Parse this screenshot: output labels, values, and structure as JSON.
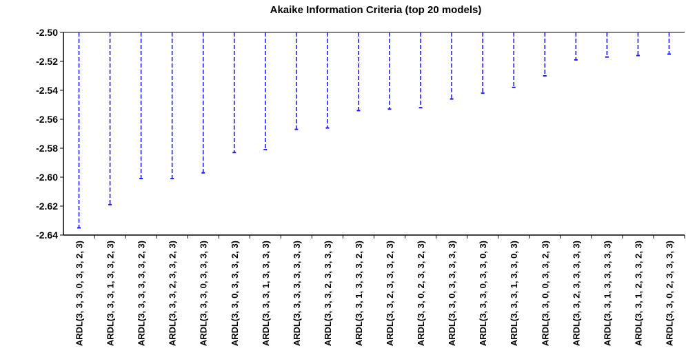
{
  "chart_data": {
    "type": "bar",
    "title": "Akaike Information Criteria (top 20 models)",
    "xlabel": "",
    "ylabel": "",
    "ylim": [
      -2.64,
      -2.5
    ],
    "yticks": [
      "-2.50",
      "-2.52",
      "-2.54",
      "-2.56",
      "-2.58",
      "-2.60",
      "-2.62",
      "-2.64"
    ],
    "grid": false,
    "legend": "none",
    "bar_style": "dashed-line",
    "color": "#1a1aff",
    "categories": [
      "ARDL(3, 3, 3, 0, 3, 3, 2, 3)",
      "ARDL(3, 3, 3, 1, 3, 3, 2, 3)",
      "ARDL(3, 3, 3, 3, 3, 3, 2, 3)",
      "ARDL(3, 3, 3, 2, 3, 3, 2, 3)",
      "ARDL(3, 3, 3, 0, 3, 3, 3, 3)",
      "ARDL(3, 3, 0, 3, 3, 3, 2, 3)",
      "ARDL(3, 3, 3, 1, 3, 3, 3, 3)",
      "ARDL(3, 3, 3, 3, 3, 3, 3, 3)",
      "ARDL(3, 3, 3, 2, 3, 3, 3, 3)",
      "ARDL(3, 3, 1, 3, 3, 3, 2, 3)",
      "ARDL(3, 3, 2, 3, 3, 3, 2, 3)",
      "ARDL(3, 3, 0, 2, 3, 3, 2, 3)",
      "ARDL(3, 3, 0, 3, 3, 3, 3, 3)",
      "ARDL(3, 3, 3, 0, 3, 3, 0, 3)",
      "ARDL(3, 3, 3, 1, 3, 3, 0, 3)",
      "ARDL(3, 3, 0, 0, 3, 3, 2, 3)",
      "ARDL(3, 3, 2, 3, 3, 3, 3, 3)",
      "ARDL(3, 3, 1, 3, 3, 3, 3, 3)",
      "ARDL(3, 3, 1, 2, 3, 3, 2, 3)",
      "ARDL(3, 3, 0, 2, 3, 3, 3, 3)"
    ],
    "values": [
      -2.635,
      -2.619,
      -2.601,
      -2.601,
      -2.597,
      -2.583,
      -2.581,
      -2.567,
      -2.566,
      -2.554,
      -2.553,
      -2.552,
      -2.546,
      -2.542,
      -2.538,
      -2.53,
      -2.519,
      -2.517,
      -2.516,
      -2.515
    ]
  }
}
